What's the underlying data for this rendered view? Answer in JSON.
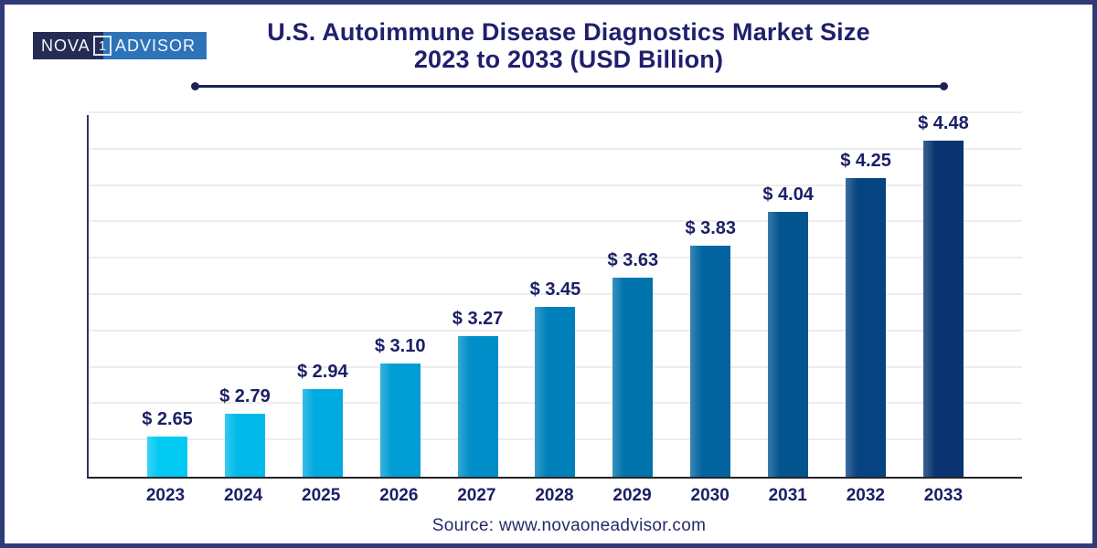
{
  "page": {
    "border_color": "#2f3a76",
    "background_color": "#ffffff"
  },
  "logo": {
    "part1": "NOVA",
    "number": "1",
    "part2": "ADVISOR",
    "dark_bg": "#252c54",
    "blue_bg": "#2e73b8"
  },
  "header": {
    "title_line1": "U.S. Autoimmune Disease Diagnostics Market Size",
    "title_line2": "2023 to 2033 (USD Billion)",
    "title_color": "#201f6d",
    "rule_color": "#1a2353"
  },
  "chart_data": {
    "type": "bar",
    "title": "U.S. Autoimmune Disease Diagnostics Market Size 2023 to 2033 (USD Billion)",
    "unit": "USD Billion",
    "categories": [
      "2023",
      "2024",
      "2025",
      "2026",
      "2027",
      "2028",
      "2029",
      "2030",
      "2031",
      "2032",
      "2033"
    ],
    "values": [
      2.65,
      2.79,
      2.94,
      3.1,
      3.27,
      3.45,
      3.63,
      3.83,
      4.04,
      4.25,
      4.48
    ],
    "value_labels": [
      "$ 2.65",
      "$ 2.79",
      "$ 2.94",
      "$ 3.10",
      "$ 3.27",
      "$ 3.45",
      "$ 3.63",
      "$ 3.83",
      "$ 4.04",
      "$ 4.25",
      "$ 4.48"
    ],
    "bar_colors": [
      "#00c9f2",
      "#00b9e9",
      "#00abdf",
      "#009dd4",
      "#008ec8",
      "#0080ba",
      "#0072ac",
      "#02649f",
      "#045490",
      "#064381",
      "#093471"
    ],
    "xlabel": "",
    "ylabel": "",
    "ylim": [
      2.4,
      4.65
    ],
    "gridline_count": 10,
    "grid": true,
    "legend": false,
    "label_color": "#1b2065",
    "gridline_color": "#ededed"
  },
  "footer": {
    "source": "Source: www.novaoneadvisor.com"
  }
}
